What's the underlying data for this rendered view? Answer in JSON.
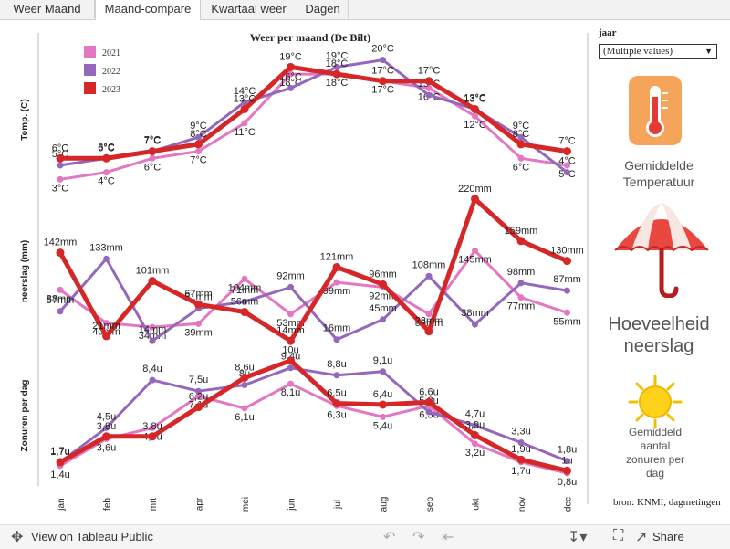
{
  "tabs": [
    "Weer Maand",
    "Maand-compare",
    "Kwartaal weer",
    "Dagen"
  ],
  "filter": {
    "label": "jaar",
    "value": "(Multiple values)"
  },
  "legend_tiles": {
    "temp": [
      "Gemiddelde",
      "Temperatuur"
    ],
    "rain": [
      "Hoeveelheid",
      "neerslag"
    ],
    "sun": [
      "Gemiddeld",
      "aantal",
      "zonuren per",
      "dag"
    ]
  },
  "source": "bron: KNMI, dagmetingen",
  "footer": {
    "view": "View on Tableau Public",
    "share": "Share"
  },
  "colors": {
    "2021": "#e377c2",
    "2022": "#9467bd",
    "2023": "#d62728"
  },
  "chart_data": {
    "type": "line",
    "title": "Weer per maand (De Bilt)",
    "categories": [
      "jan",
      "feb",
      "mrt",
      "apr",
      "mei",
      "jun",
      "jul",
      "aug",
      "sep",
      "okt",
      "nov",
      "dec"
    ],
    "legend": [
      "2021",
      "2022",
      "2023"
    ],
    "panels": [
      {
        "ylabel": "Temp. (C)",
        "unit": "°C",
        "ylim": [
          2,
          21
        ],
        "series": [
          {
            "name": "2021",
            "values": [
              3,
              4,
              6,
              7,
              11,
              18,
              18,
              17,
              16,
              12,
              6,
              5
            ]
          },
          {
            "name": "2022",
            "values": [
              5,
              6,
              7,
              9,
              14,
              16,
              19,
              20,
              15,
              13,
              9,
              4
            ]
          },
          {
            "name": "2023",
            "values": [
              6,
              6,
              7,
              8,
              13,
              19,
              18,
              17,
              17,
              13,
              8,
              7
            ]
          }
        ]
      },
      {
        "ylabel": "neerslag (mm)",
        "unit": "mm",
        "ylim": [
          5,
          225
        ],
        "series": [
          {
            "name": "2021",
            "values": [
              88,
              40,
              34,
              39,
              104,
              53,
              99,
              92,
              53,
              145,
              77,
              55
            ]
          },
          {
            "name": "2022",
            "values": [
              57,
              133,
              14,
              61,
              71,
              92,
              16,
              45,
              108,
              38,
              98,
              87
            ]
          },
          {
            "name": "2023",
            "values": [
              142,
              21,
              101,
              67,
              56,
              14,
              121,
              96,
              28,
              220,
              159,
              130
            ]
          }
        ]
      },
      {
        "ylabel": "Zonuren per dag",
        "unit": "u",
        "ylim": [
          0.5,
          10.5
        ],
        "series": [
          {
            "name": "2021",
            "values": [
              1.4,
              3.6,
              4.5,
              7.1,
              6.1,
              8.1,
              6.3,
              5.4,
              6.3,
              3.2,
              1.7,
              0.8
            ]
          },
          {
            "name": "2022",
            "values": [
              1.7,
              4.5,
              8.4,
              7.5,
              8.0,
              9.4,
              8.8,
              9.1,
              5.8,
              4.7,
              3.3,
              1.8
            ]
          },
          {
            "name": "2023",
            "values": [
              1.7,
              3.8,
              3.8,
              6.2,
              8.6,
              10.0,
              6.5,
              6.4,
              6.6,
              3.9,
              1.9,
              1.0
            ]
          }
        ]
      }
    ]
  }
}
